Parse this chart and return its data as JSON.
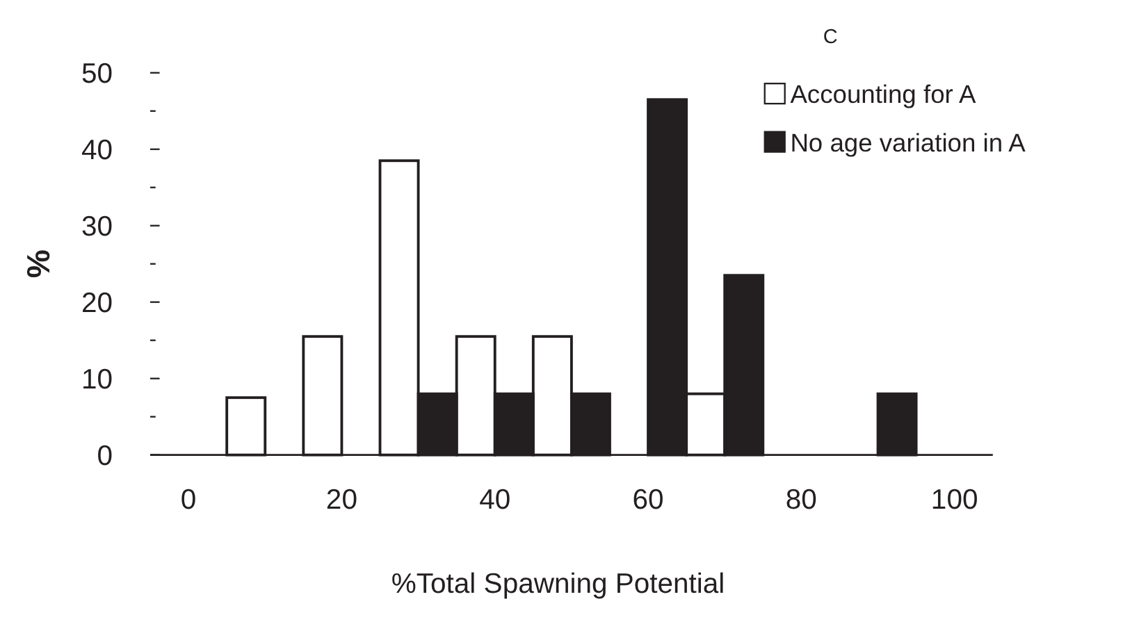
{
  "chart_data": {
    "type": "bar",
    "xlabel": "%Total Spawning Potential",
    "ylabel": "%",
    "annotations": [
      "C"
    ],
    "categories": [
      "0",
      null,
      "20",
      null,
      "40",
      null,
      "60",
      null,
      "80",
      null,
      "100"
    ],
    "series": [
      {
        "name": "Accounting for A",
        "color": "#ffffff",
        "values": [
          0,
          7.5,
          15.5,
          38.5,
          15.5,
          15.5,
          0,
          8,
          0,
          0,
          0
        ]
      },
      {
        "name": "No age variation in A",
        "color": "#231f20",
        "values": [
          0,
          0,
          0,
          8,
          8,
          8,
          46.5,
          23.5,
          0,
          8,
          0
        ]
      }
    ],
    "ylim": [
      0,
      50
    ],
    "yticks": [
      0,
      {
        "value": 5,
        "label": null
      },
      10,
      {
        "value": 15,
        "label": null
      },
      20,
      {
        "value": 25,
        "label": null
      },
      30,
      {
        "value": 35,
        "label": null
      },
      40,
      {
        "value": 45,
        "label": null
      },
      50
    ],
    "grid": false,
    "legend": "top right"
  }
}
